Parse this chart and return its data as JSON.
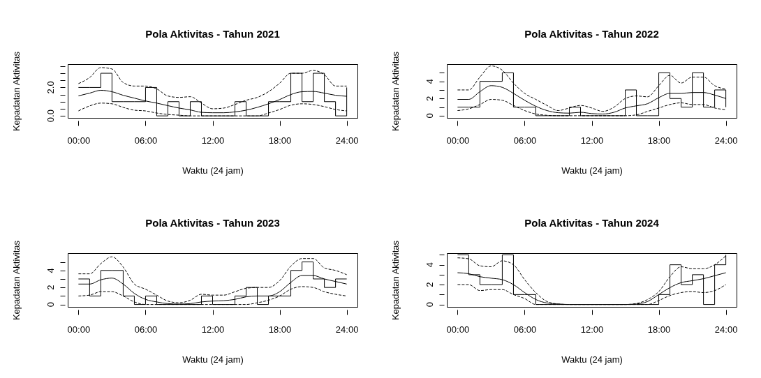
{
  "chart_data": [
    {
      "type": "line",
      "title": "Pola Aktivitas - Tahun 2021",
      "xlabel": "Waktu (24 jam)",
      "ylabel": "Kepadatan Aktivitas",
      "xlim": [
        -0.96,
        24.96
      ],
      "xticks": [
        {
          "value": 0,
          "label": "00:00"
        },
        {
          "value": 6,
          "label": "06:00"
        },
        {
          "value": 12,
          "label": "12:00"
        },
        {
          "value": 18,
          "label": "18:00"
        },
        {
          "value": 24,
          "label": "24:00"
        }
      ],
      "ylim": [
        -0.14,
        3.64
      ],
      "yticks": [
        {
          "value": 0,
          "label": "0.0"
        },
        {
          "value": 0.5,
          "label": null
        },
        {
          "value": 1,
          "label": null
        },
        {
          "value": 1.5,
          "label": null
        },
        {
          "value": 2,
          "label": "2.0"
        },
        {
          "value": 2.5,
          "label": null
        },
        {
          "value": 3,
          "label": null
        },
        {
          "value": 3.5,
          "label": null
        }
      ],
      "x": [
        0,
        1,
        2,
        3,
        4,
        5,
        6,
        7,
        8,
        9,
        10,
        11,
        12,
        13,
        14,
        15,
        16,
        17,
        18,
        19,
        20,
        21,
        22,
        23,
        24
      ],
      "series": [
        {
          "type": "step",
          "color": "#000000",
          "values": [
            2,
            2,
            3,
            1,
            1,
            1,
            2,
            0,
            1,
            0,
            1,
            0,
            0,
            0,
            1,
            0,
            0,
            1,
            1,
            3,
            1,
            3,
            1,
            0,
            2
          ]
        },
        {
          "type": "line",
          "color": "#000000",
          "values": [
            1.41,
            1.6,
            1.8,
            1.7,
            1.45,
            1.25,
            1.05,
            0.9,
            0.72,
            0.55,
            0.42,
            0.25,
            0.22,
            0.22,
            0.28,
            0.4,
            0.6,
            0.85,
            1.15,
            1.5,
            1.7,
            1.72,
            1.6,
            1.45,
            1.38
          ]
        },
        {
          "type": "line",
          "color": "#000000",
          "line_style": "dashed",
          "values": [
            2.27,
            2.7,
            3.4,
            3.3,
            2.35,
            2.1,
            2.1,
            1.9,
            1.4,
            1.3,
            1.35,
            0.9,
            0.5,
            0.55,
            0.8,
            1.1,
            1.3,
            1.7,
            2.3,
            3.0,
            3.0,
            3.2,
            2.9,
            2.1,
            2.1
          ]
        },
        {
          "type": "line",
          "color": "#000000",
          "line_style": "dashed",
          "values": [
            0.35,
            0.7,
            0.9,
            0.85,
            0.6,
            0.4,
            0.35,
            0.2,
            0.1,
            0.05,
            0,
            0,
            0,
            0,
            0,
            0,
            0,
            0.2,
            0.45,
            0.75,
            0.85,
            0.8,
            0.65,
            0.45,
            0.35
          ]
        }
      ]
    },
    {
      "type": "line",
      "title": "Pola Aktivitas - Tahun 2022",
      "xlabel": "Waktu (24 jam)",
      "ylabel": "Kepadatan Aktivitas",
      "xlim": [
        -0.96,
        24.96
      ],
      "xticks": [
        {
          "value": 0,
          "label": "00:00"
        },
        {
          "value": 6,
          "label": "06:00"
        },
        {
          "value": 12,
          "label": "12:00"
        },
        {
          "value": 18,
          "label": "18:00"
        },
        {
          "value": 24,
          "label": "24:00"
        }
      ],
      "ylim": [
        -0.25,
        6.0
      ],
      "yticks": [
        0,
        {
          "value": 1,
          "label": null
        },
        2,
        {
          "value": 3,
          "label": null
        },
        4,
        {
          "value": 5,
          "label": null
        }
      ],
      "x": [
        0,
        1,
        2,
        3,
        4,
        5,
        6,
        7,
        8,
        9,
        10,
        11,
        12,
        13,
        14,
        15,
        16,
        17,
        18,
        19,
        20,
        21,
        22,
        23,
        24
      ],
      "series": [
        {
          "type": "step",
          "color": "#000000",
          "values": [
            1,
            1,
            4,
            4,
            5,
            1,
            1,
            0,
            0,
            0,
            1,
            0,
            0,
            0,
            0,
            3,
            0,
            0,
            5,
            2,
            1,
            5,
            1,
            3,
            1
          ]
        },
        {
          "type": "line",
          "color": "#000000",
          "values": [
            1.9,
            1.9,
            2.8,
            3.5,
            3.3,
            2.6,
            1.8,
            1.1,
            0.6,
            0.35,
            0.3,
            0.4,
            0.25,
            0.2,
            0.4,
            0.9,
            1.15,
            1.4,
            2.1,
            2.6,
            2.6,
            2.7,
            2.7,
            2.4,
            2.0
          ]
        },
        {
          "type": "line",
          "color": "#000000",
          "line_style": "dashed",
          "values": [
            3.0,
            3.0,
            4.5,
            5.8,
            5.3,
            3.8,
            2.6,
            1.9,
            1.2,
            0.6,
            0.9,
            1.2,
            0.9,
            0.5,
            1.0,
            2.0,
            2.3,
            2.2,
            3.5,
            4.7,
            3.8,
            4.5,
            4.5,
            3.5,
            3.1
          ]
        },
        {
          "type": "line",
          "color": "#000000",
          "line_style": "dashed",
          "values": [
            0.6,
            0.8,
            1.3,
            1.9,
            1.8,
            1.2,
            0.6,
            0.2,
            0.05,
            0,
            0,
            0,
            0,
            0,
            0,
            0,
            0.1,
            0.5,
            0.9,
            1.3,
            1.5,
            1.3,
            1.3,
            0.9,
            0.7
          ]
        }
      ]
    },
    {
      "type": "line",
      "title": "Pola Aktivitas - Tahun 2023",
      "xlabel": "Waktu (24 jam)",
      "ylabel": "Kepadatan Aktivitas",
      "xlim": [
        -0.96,
        24.96
      ],
      "xticks": [
        {
          "value": 0,
          "label": "00:00"
        },
        {
          "value": 6,
          "label": "06:00"
        },
        {
          "value": 12,
          "label": "12:00"
        },
        {
          "value": 18,
          "label": "18:00"
        },
        {
          "value": 24,
          "label": "24:00"
        }
      ],
      "ylim": [
        -0.28,
        6.03
      ],
      "yticks": [
        0,
        {
          "value": 1,
          "label": null
        },
        2,
        {
          "value": 3,
          "label": null
        },
        4,
        {
          "value": 5,
          "label": null
        }
      ],
      "x": [
        0,
        1,
        2,
        3,
        4,
        5,
        6,
        7,
        8,
        9,
        10,
        11,
        12,
        13,
        14,
        15,
        16,
        17,
        18,
        19,
        20,
        21,
        22,
        23,
        24
      ],
      "series": [
        {
          "type": "step",
          "color": "#000000",
          "values": [
            3,
            1,
            4,
            4,
            1,
            0,
            1,
            0,
            0,
            0,
            0,
            1,
            0,
            0,
            1,
            2,
            0,
            1,
            1,
            4,
            5,
            3,
            2,
            3,
            3
          ]
        },
        {
          "type": "line",
          "color": "#000000",
          "values": [
            2.4,
            2.4,
            2.9,
            3.1,
            2.4,
            1.3,
            0.6,
            0.3,
            0.1,
            0.05,
            0.1,
            0.3,
            0.4,
            0.45,
            0.6,
            0.9,
            1.0,
            1.0,
            1.5,
            2.6,
            3.4,
            3.4,
            3.0,
            2.7,
            2.4
          ]
        },
        {
          "type": "line",
          "color": "#000000",
          "line_style": "dashed",
          "values": [
            3.6,
            3.6,
            4.8,
            5.6,
            4.4,
            2.4,
            1.8,
            1.1,
            0.4,
            0.2,
            0.5,
            1.2,
            1.1,
            1.1,
            1.5,
            1.9,
            2.0,
            2.0,
            2.8,
            4.5,
            5.4,
            5.4,
            4.3,
            4.0,
            3.5
          ]
        },
        {
          "type": "line",
          "color": "#000000",
          "line_style": "dashed",
          "values": [
            1.0,
            1.1,
            1.5,
            1.5,
            1.0,
            0.3,
            0,
            0,
            0,
            0,
            0,
            0,
            0,
            0,
            0,
            0,
            0.2,
            0.5,
            1.0,
            1.8,
            2.1,
            2.0,
            1.5,
            1.2,
            1.0
          ]
        }
      ]
    },
    {
      "type": "line",
      "title": "Pola Aktivitas - Tahun 2024",
      "xlabel": "Waktu (24 jam)",
      "ylabel": "Kepadatan Aktivitas",
      "xlim": [
        -0.96,
        24.96
      ],
      "xticks": [
        {
          "value": 0,
          "label": "00:00"
        },
        {
          "value": 6,
          "label": "06:00"
        },
        {
          "value": 12,
          "label": "12:00"
        },
        {
          "value": 18,
          "label": "18:00"
        },
        {
          "value": 24,
          "label": "24:00"
        }
      ],
      "ylim": [
        -0.24,
        5.17
      ],
      "yticks": [
        0,
        {
          "value": 1,
          "label": null
        },
        2,
        {
          "value": 3,
          "label": null
        },
        4,
        {
          "value": 5,
          "label": null
        }
      ],
      "x": [
        0,
        1,
        2,
        3,
        4,
        5,
        6,
        7,
        8,
        9,
        10,
        11,
        12,
        13,
        14,
        15,
        16,
        17,
        18,
        19,
        20,
        21,
        22,
        23,
        24
      ],
      "series": [
        {
          "type": "step",
          "color": "#000000",
          "values": [
            5,
            3,
            2,
            2,
            5,
            1,
            1,
            0,
            0,
            0,
            0,
            0,
            0,
            0,
            0,
            0,
            0,
            0,
            1,
            4,
            2,
            3,
            0,
            4,
            5
          ]
        },
        {
          "type": "line",
          "color": "#000000",
          "values": [
            3.2,
            3.1,
            2.8,
            2.65,
            2.5,
            2.0,
            1.2,
            0.5,
            0.15,
            0.05,
            0,
            0,
            0,
            0,
            0,
            0,
            0.05,
            0.3,
            1.0,
            1.7,
            2.2,
            2.4,
            2.6,
            2.9,
            3.2
          ]
        },
        {
          "type": "line",
          "color": "#000000",
          "line_style": "dashed",
          "values": [
            4.7,
            4.6,
            3.9,
            3.8,
            4.4,
            4.0,
            2.5,
            1.2,
            0.3,
            0.05,
            0,
            0,
            0,
            0,
            0,
            0,
            0.1,
            0.5,
            1.3,
            2.8,
            3.8,
            3.6,
            3.6,
            4.0,
            4.9
          ]
        },
        {
          "type": "line",
          "color": "#000000",
          "line_style": "dashed",
          "values": [
            2.0,
            2.0,
            1.4,
            1.5,
            1.5,
            1.0,
            0.6,
            0,
            0,
            0,
            0,
            0,
            0,
            0,
            0,
            0,
            0,
            0,
            0.4,
            0.9,
            1.2,
            1.3,
            1.2,
            1.4,
            2.0
          ]
        }
      ]
    }
  ]
}
